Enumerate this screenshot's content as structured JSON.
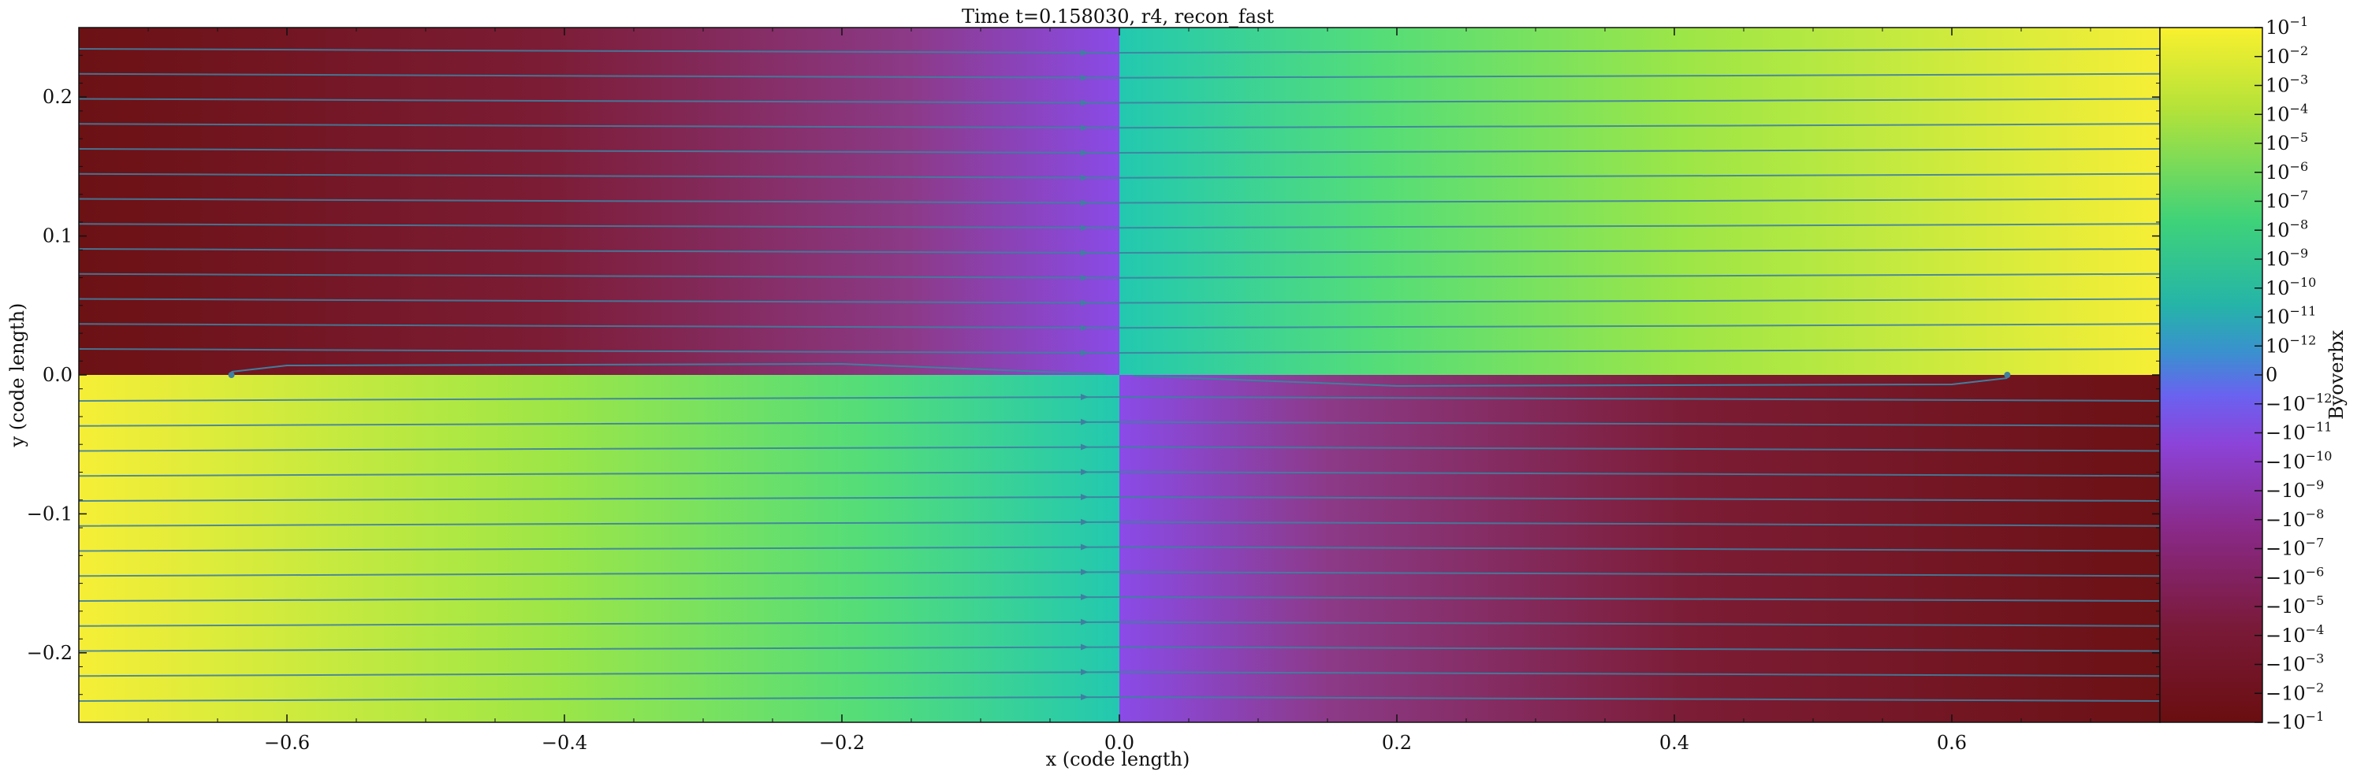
{
  "chart_data": {
    "type": "heatmap",
    "title": "Time t=0.158030, r4, recon_fast",
    "xlabel": "x  (code length)",
    "ylabel": "y  (code length)",
    "xlim": [
      -0.75,
      0.75
    ],
    "ylim": [
      -0.25,
      0.25
    ],
    "x_ticks": [
      -0.6,
      -0.4,
      -0.2,
      0.0,
      0.2,
      0.4,
      0.6
    ],
    "x_tick_labels": [
      "−0.6",
      "−0.4",
      "−0.2",
      "0.0",
      "0.2",
      "0.4",
      "0.6"
    ],
    "y_ticks": [
      0.2,
      0.1,
      0.0,
      -0.1,
      -0.2
    ],
    "y_tick_labels": [
      "0.2",
      "0.1",
      "0.0",
      "−0.1",
      "−0.2"
    ],
    "colorbar": {
      "label": "Byoverbx",
      "scale": "symlog",
      "colormap": "viridis-plasma diverging",
      "tick_labels": [
        {
          "base": "10",
          "exp": "−1"
        },
        {
          "base": "10",
          "exp": "−2"
        },
        {
          "base": "10",
          "exp": "−3"
        },
        {
          "base": "10",
          "exp": "−4"
        },
        {
          "base": "10",
          "exp": "−5"
        },
        {
          "base": "10",
          "exp": "−6"
        },
        {
          "base": "10",
          "exp": "−7"
        },
        {
          "base": "10",
          "exp": "−8"
        },
        {
          "base": "10",
          "exp": "−9"
        },
        {
          "base": "10",
          "exp": "−10"
        },
        {
          "base": "10",
          "exp": "−11"
        },
        {
          "base": "10",
          "exp": "−12"
        },
        {
          "base": "0",
          "exp": ""
        },
        {
          "base": "−10",
          "exp": "−12"
        },
        {
          "base": "−10",
          "exp": "−11"
        },
        {
          "base": "−10",
          "exp": "−10"
        },
        {
          "base": "−10",
          "exp": "−9"
        },
        {
          "base": "−10",
          "exp": "−8"
        },
        {
          "base": "−10",
          "exp": "−7"
        },
        {
          "base": "−10",
          "exp": "−6"
        },
        {
          "base": "−10",
          "exp": "−5"
        },
        {
          "base": "−10",
          "exp": "−4"
        },
        {
          "base": "−10",
          "exp": "−3"
        },
        {
          "base": "−10",
          "exp": "−2"
        },
        {
          "base": "−10",
          "exp": "−1"
        }
      ]
    },
    "quadrants": [
      {
        "x": [
          -0.75,
          0.0
        ],
        "y": [
          0.0,
          0.25
        ],
        "sign": "negative"
      },
      {
        "x": [
          0.0,
          0.75
        ],
        "y": [
          0.0,
          0.25
        ],
        "sign": "positive"
      },
      {
        "x": [
          -0.75,
          0.0
        ],
        "y": [
          -0.25,
          0.0
        ],
        "sign": "positive"
      },
      {
        "x": [
          0.0,
          0.75
        ],
        "y": [
          -0.25,
          0.0
        ],
        "sign": "negative"
      }
    ],
    "streamlines_y": [
      0.233,
      0.215,
      0.197,
      0.179,
      0.161,
      0.143,
      0.125,
      0.107,
      0.089,
      0.071,
      0.053,
      0.035,
      0.017,
      -0.017,
      -0.035,
      -0.053,
      -0.071,
      -0.089,
      -0.107,
      -0.125,
      -0.143,
      -0.161,
      -0.179,
      -0.197,
      -0.215,
      -0.233
    ],
    "colors": {
      "streamline": "#3f7fa0",
      "dark_red": "#6e1010",
      "purple": "#8e3d95",
      "cyan": "#25c9a8",
      "green": "#8ee04a",
      "yellow": "#f7ee34"
    }
  }
}
